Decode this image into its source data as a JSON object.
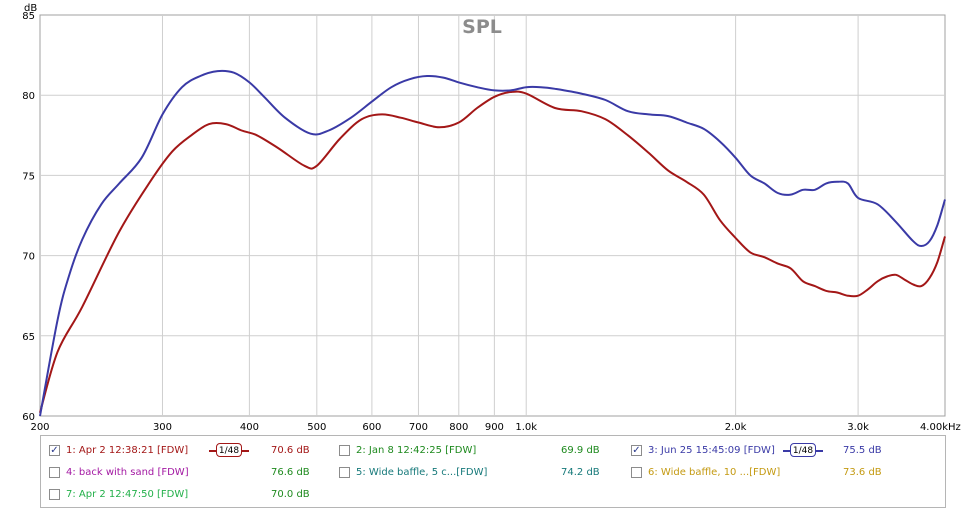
{
  "chart_data": {
    "type": "line",
    "title": "SPL",
    "y_unit": "dB",
    "x_unit": "Hz",
    "x_scale": "log",
    "xlim": [
      200,
      4000
    ],
    "ylim": [
      60,
      85
    ],
    "grid": true,
    "y_ticks": [
      60,
      65,
      70,
      75,
      80,
      85
    ],
    "x_ticks": [
      {
        "value": 200,
        "label": "200"
      },
      {
        "value": 300,
        "label": "300"
      },
      {
        "value": 400,
        "label": "400"
      },
      {
        "value": 500,
        "label": "500"
      },
      {
        "value": 600,
        "label": "600"
      },
      {
        "value": 700,
        "label": "700"
      },
      {
        "value": 800,
        "label": "800"
      },
      {
        "value": 900,
        "label": "900"
      },
      {
        "value": 1000,
        "label": "1.0k"
      },
      {
        "value": 2000,
        "label": "2.0k"
      },
      {
        "value": 3000,
        "label": "3.0k"
      },
      {
        "value": 4000,
        "label": "4.00k"
      }
    ],
    "series": [
      {
        "name": "1: Apr 2 12:38:21 [FDW]",
        "color": "#a31717",
        "x": [
          200,
          212,
          230,
          260,
          290,
          310,
          330,
          350,
          370,
          390,
          410,
          440,
          480,
          500,
          540,
          580,
          620,
          660,
          700,
          750,
          800,
          850,
          900,
          950,
          1000,
          1100,
          1200,
          1300,
          1400,
          1500,
          1600,
          1700,
          1800,
          1900,
          2000,
          2100,
          2200,
          2300,
          2400,
          2500,
          2600,
          2700,
          2800,
          2900,
          3000,
          3100,
          3200,
          3300,
          3400,
          3500,
          3600,
          3700,
          3800,
          3900,
          4000
        ],
        "y": [
          60.2,
          64.0,
          66.8,
          71.5,
          74.8,
          76.5,
          77.5,
          78.2,
          78.2,
          77.8,
          77.5,
          76.7,
          75.6,
          75.6,
          77.3,
          78.5,
          78.8,
          78.6,
          78.3,
          78.0,
          78.3,
          79.2,
          79.9,
          80.2,
          80.1,
          79.2,
          79.0,
          78.5,
          77.5,
          76.4,
          75.3,
          74.6,
          73.8,
          72.2,
          71.1,
          70.2,
          69.9,
          69.5,
          69.2,
          68.4,
          68.1,
          67.8,
          67.7,
          67.5,
          67.5,
          67.9,
          68.4,
          68.7,
          68.8,
          68.5,
          68.2,
          68.1,
          68.6,
          69.6,
          71.2
        ]
      },
      {
        "name": "3: Jun 25 15:45:09 [FDW]",
        "color": "#3a3aa6",
        "x": [
          200,
          212,
          220,
          230,
          245,
          260,
          280,
          300,
          320,
          340,
          360,
          380,
          400,
          420,
          450,
          490,
          520,
          560,
          600,
          640,
          680,
          720,
          760,
          800,
          850,
          900,
          950,
          1000,
          1050,
          1100,
          1200,
          1300,
          1400,
          1500,
          1600,
          1700,
          1800,
          1900,
          2000,
          2100,
          2200,
          2300,
          2400,
          2500,
          2600,
          2700,
          2800,
          2900,
          3000,
          3200,
          3400,
          3600,
          3700,
          3800,
          3900,
          4000
        ],
        "y": [
          60.0,
          66.0,
          68.7,
          71.0,
          73.2,
          74.5,
          76.1,
          78.8,
          80.5,
          81.2,
          81.5,
          81.4,
          80.8,
          79.9,
          78.6,
          77.6,
          77.8,
          78.6,
          79.6,
          80.5,
          81.0,
          81.2,
          81.1,
          80.8,
          80.5,
          80.3,
          80.3,
          80.5,
          80.5,
          80.4,
          80.1,
          79.7,
          79.0,
          78.8,
          78.7,
          78.3,
          77.9,
          77.1,
          76.1,
          75.0,
          74.5,
          73.9,
          73.8,
          74.1,
          74.1,
          74.5,
          74.6,
          74.5,
          73.6,
          73.2,
          72.1,
          70.9,
          70.6,
          70.9,
          71.9,
          73.5
        ]
      }
    ]
  },
  "legend": [
    {
      "name": "1: Apr 2 12:38:21 [FDW]",
      "checked": true,
      "value": "70.6 dB",
      "color": "#a31717",
      "value_color": "#a31717",
      "smoothing": "1/48"
    },
    {
      "name": "2: Jan 8 12:42:25 [FDW]",
      "checked": false,
      "value": "69.9 dB",
      "color": "#1e8a1e",
      "value_color": "#1e8a1e",
      "smoothing": null
    },
    {
      "name": "3: Jun 25 15:45:09 [FDW]",
      "checked": true,
      "value": "75.5 dB",
      "color": "#3a3aa6",
      "value_color": "#3a3aa6",
      "smoothing": "1/48"
    },
    {
      "name": "4: back with sand [FDW]",
      "checked": false,
      "value": "76.6 dB",
      "color": "#a319a3",
      "value_color": "#1e8a1e",
      "smoothing": null
    },
    {
      "name": "5: Wide baffle, 5 c...[FDW]",
      "checked": false,
      "value": "74.2 dB",
      "color": "#16797a",
      "value_color": "#16797a",
      "smoothing": null
    },
    {
      "name": "6: Wide baffle, 10 ...[FDW]",
      "checked": false,
      "value": "73.6 dB",
      "color": "#c49a12",
      "value_color": "#c49a12",
      "smoothing": null
    },
    {
      "name": "7: Apr 2 12:47:50 [FDW]",
      "checked": false,
      "value": "70.0 dB",
      "color": "#23b04a",
      "value_color": "#1e8a1e",
      "smoothing": null
    }
  ]
}
